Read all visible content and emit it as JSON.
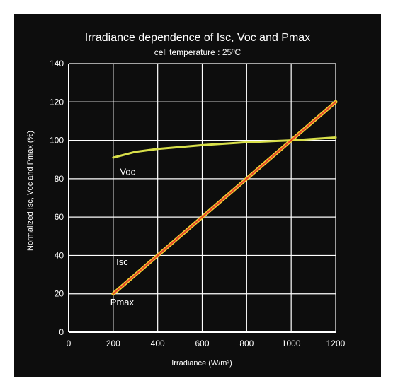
{
  "chart_data": {
    "type": "line",
    "title": "Irradiance dependence of Isc, Voc and Pmax",
    "subtitle": "cell temperature : 25ºC",
    "xlabel": "Irradiance (W/m²)",
    "ylabel": "Normalized Isc, Voc and Pmax (%)",
    "xlim": [
      0,
      1200
    ],
    "ylim": [
      0,
      140
    ],
    "xticks": [
      "0",
      "200",
      "400",
      "600",
      "800",
      "1000",
      "1200"
    ],
    "yticks": [
      "0",
      "20",
      "40",
      "60",
      "80",
      "100",
      "120",
      "140"
    ],
    "grid": true,
    "series": [
      {
        "name": "Voc",
        "color": "#d9e04a",
        "x": [
          200,
          300,
          400,
          600,
          800,
          1000,
          1200
        ],
        "values": [
          91,
          94,
          95.5,
          97.5,
          99,
          100,
          101.5
        ]
      },
      {
        "name": "Isc",
        "color": "#f2d531",
        "x": [
          200,
          1200
        ],
        "values": [
          20,
          120
        ]
      },
      {
        "name": "Pmax",
        "color": "#e8442a",
        "x": [
          200,
          1200
        ],
        "values": [
          20,
          120
        ]
      }
    ]
  }
}
